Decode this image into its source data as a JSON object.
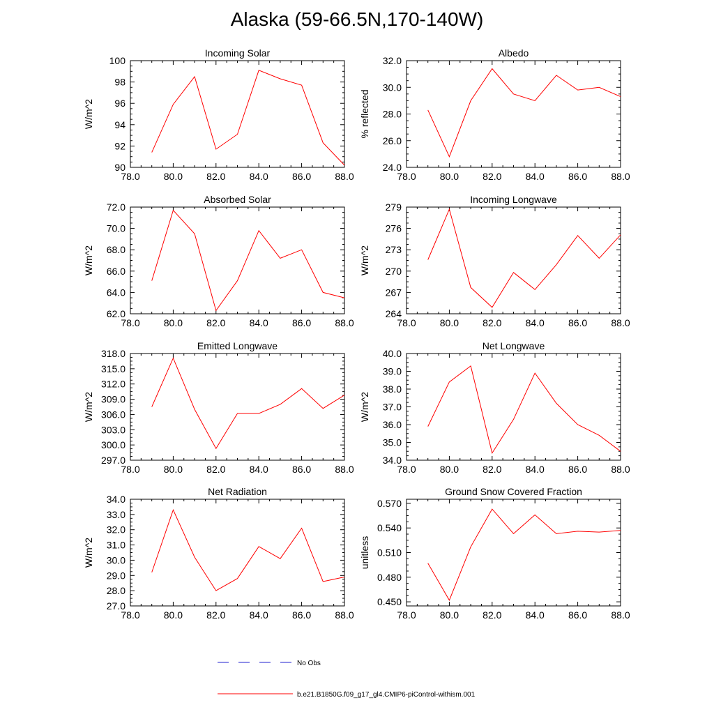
{
  "page_title": "Alaska (59-66.5N,170-140W)",
  "colors": {
    "model": "#ff0000",
    "obs": "#1f1fd0"
  },
  "legend": {
    "obs_label": "No Obs",
    "model_label": "b.e21.B1850G.f09_g17_gl4.CMIP6-piControl-withism.001"
  },
  "chart_data": [
    {
      "type": "line",
      "title": "Incoming Solar",
      "ylabel": "W/m^2",
      "xlim": [
        78,
        88
      ],
      "ylim": [
        90,
        100
      ],
      "x_ticks": [
        "78.0",
        "80.0",
        "82.0",
        "84.0",
        "86.0",
        "88.0"
      ],
      "y_ticks": [
        "90",
        "92",
        "94",
        "96",
        "98",
        "100"
      ],
      "series": [
        {
          "name": "b.e21.B1850G.f09_g17_gl4.CMIP6-piControl-withism.001",
          "x": [
            79,
            80,
            81,
            82,
            83,
            84,
            85,
            86,
            87,
            88
          ],
          "y": [
            91.4,
            95.9,
            98.5,
            91.7,
            93.1,
            99.1,
            98.3,
            97.7,
            92.3,
            90.2
          ]
        }
      ]
    },
    {
      "type": "line",
      "title": "Albedo",
      "ylabel": "% reflected",
      "xlim": [
        78,
        88
      ],
      "ylim": [
        24,
        32
      ],
      "x_ticks": [
        "78.0",
        "80.0",
        "82.0",
        "84.0",
        "86.0",
        "88.0"
      ],
      "y_ticks": [
        "24.0",
        "26.0",
        "28.0",
        "30.0",
        "32.0"
      ],
      "series": [
        {
          "name": "b.e21.B1850G.f09_g17_gl4.CMIP6-piControl-withism.001",
          "x": [
            79,
            80,
            81,
            82,
            83,
            84,
            85,
            86,
            87,
            88
          ],
          "y": [
            28.3,
            24.8,
            29.0,
            31.4,
            29.5,
            29.0,
            30.9,
            29.8,
            30.0,
            29.3
          ]
        }
      ]
    },
    {
      "type": "line",
      "title": "Absorbed Solar",
      "ylabel": "W/m^2",
      "xlim": [
        78,
        88
      ],
      "ylim": [
        62,
        72
      ],
      "x_ticks": [
        "78.0",
        "80.0",
        "82.0",
        "84.0",
        "86.0",
        "88.0"
      ],
      "y_ticks": [
        "62.0",
        "64.0",
        "66.0",
        "68.0",
        "70.0",
        "72.0"
      ],
      "series": [
        {
          "name": "b.e21.B1850G.f09_g17_gl4.CMIP6-piControl-withism.001",
          "x": [
            79,
            80,
            81,
            82,
            83,
            84,
            85,
            86,
            87,
            88
          ],
          "y": [
            65.1,
            71.7,
            69.5,
            62.3,
            65.1,
            69.8,
            67.2,
            68.0,
            64.0,
            63.5
          ]
        }
      ]
    },
    {
      "type": "line",
      "title": "Incoming Longwave",
      "ylabel": "W/m^2",
      "xlim": [
        78,
        88
      ],
      "ylim": [
        264,
        279
      ],
      "x_ticks": [
        "78.0",
        "80.0",
        "82.0",
        "84.0",
        "86.0",
        "88.0"
      ],
      "y_ticks": [
        "264",
        "267",
        "270",
        "273",
        "276",
        "279"
      ],
      "series": [
        {
          "name": "b.e21.B1850G.f09_g17_gl4.CMIP6-piControl-withism.001",
          "x": [
            79,
            80,
            81,
            82,
            83,
            84,
            85,
            86,
            87,
            88
          ],
          "y": [
            271.6,
            278.7,
            267.7,
            264.9,
            269.8,
            267.4,
            270.9,
            275.0,
            271.8,
            275.1
          ]
        }
      ]
    },
    {
      "type": "line",
      "title": "Emitted Longwave",
      "ylabel": "W/m^2",
      "xlim": [
        78,
        88
      ],
      "ylim": [
        297,
        318
      ],
      "x_ticks": [
        "78.0",
        "80.0",
        "82.0",
        "84.0",
        "86.0",
        "88.0"
      ],
      "y_ticks": [
        "297.0",
        "300.0",
        "303.0",
        "306.0",
        "309.0",
        "312.0",
        "315.0",
        "318.0"
      ],
      "series": [
        {
          "name": "b.e21.B1850G.f09_g17_gl4.CMIP6-piControl-withism.001",
          "x": [
            79,
            80,
            81,
            82,
            83,
            84,
            85,
            86,
            87,
            88
          ],
          "y": [
            307.5,
            317.1,
            307.0,
            299.3,
            306.2,
            306.2,
            308.0,
            311.1,
            307.2,
            309.8
          ]
        }
      ]
    },
    {
      "type": "line",
      "title": "Net Longwave",
      "ylabel": "W/m^2",
      "xlim": [
        78,
        88
      ],
      "ylim": [
        34,
        40
      ],
      "x_ticks": [
        "78.0",
        "80.0",
        "82.0",
        "84.0",
        "86.0",
        "88.0"
      ],
      "y_ticks": [
        "34.0",
        "35.0",
        "36.0",
        "37.0",
        "38.0",
        "39.0",
        "40.0"
      ],
      "series": [
        {
          "name": "b.e21.B1850G.f09_g17_gl4.CMIP6-piControl-withism.001",
          "x": [
            79,
            80,
            81,
            82,
            83,
            84,
            85,
            86,
            87,
            88
          ],
          "y": [
            35.9,
            38.4,
            39.3,
            34.4,
            36.3,
            38.9,
            37.2,
            36.0,
            35.4,
            34.5
          ]
        }
      ]
    },
    {
      "type": "line",
      "title": "Net Radiation",
      "ylabel": "W/m^2",
      "xlim": [
        78,
        88
      ],
      "ylim": [
        27,
        34
      ],
      "x_ticks": [
        "78.0",
        "80.0",
        "82.0",
        "84.0",
        "86.0",
        "88.0"
      ],
      "y_ticks": [
        "27.0",
        "28.0",
        "29.0",
        "30.0",
        "31.0",
        "32.0",
        "33.0",
        "34.0"
      ],
      "series": [
        {
          "name": "b.e21.B1850G.f09_g17_gl4.CMIP6-piControl-withism.001",
          "x": [
            79,
            80,
            81,
            82,
            83,
            84,
            85,
            86,
            87,
            88
          ],
          "y": [
            29.2,
            33.3,
            30.2,
            28.0,
            28.8,
            30.9,
            30.1,
            32.1,
            28.6,
            28.9
          ]
        }
      ]
    },
    {
      "type": "line",
      "title": "Ground Snow Covered Fraction",
      "ylabel": "unitless",
      "xlim": [
        78,
        88
      ],
      "ylim": [
        0.445,
        0.575
      ],
      "x_ticks": [
        "78.0",
        "80.0",
        "82.0",
        "84.0",
        "86.0",
        "88.0"
      ],
      "y_ticks": [
        "0.450",
        "0.480",
        "0.510",
        "0.540",
        "0.570"
      ],
      "series": [
        {
          "name": "b.e21.B1850G.f09_g17_gl4.CMIP6-piControl-withism.001",
          "x": [
            79,
            80,
            81,
            82,
            83,
            84,
            85,
            86,
            87,
            88
          ],
          "y": [
            0.497,
            0.452,
            0.517,
            0.563,
            0.533,
            0.556,
            0.533,
            0.536,
            0.535,
            0.537
          ]
        }
      ]
    }
  ]
}
